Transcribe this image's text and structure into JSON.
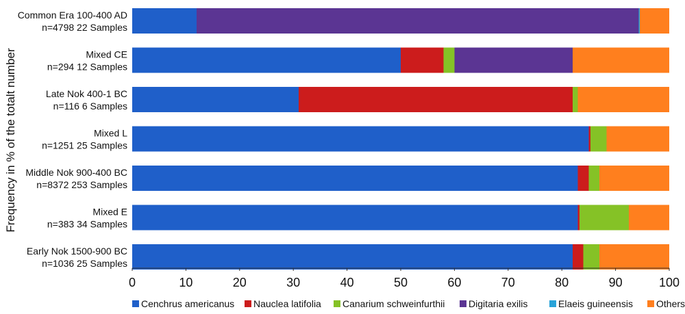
{
  "chart_data": {
    "type": "bar",
    "orientation": "horizontal",
    "stacked": true,
    "ylabel": "Frequency in % of the totalt number",
    "xlim": [
      0,
      100
    ],
    "xticks": [
      0,
      10,
      20,
      30,
      40,
      50,
      60,
      70,
      80,
      90,
      100
    ],
    "grid": false,
    "legend_position": "bottom",
    "categories": [
      {
        "line1": "Common Era 100-400 AD",
        "line2": "n=4798  22 Samples"
      },
      {
        "line1": "Mixed CE",
        "line2": "n=294  12 Samples"
      },
      {
        "line1": "Late Nok 400-1 BC",
        "line2": "n=116  6 Samples"
      },
      {
        "line1": "Mixed L",
        "line2": "n=1251  25 Samples"
      },
      {
        "line1": "Middle Nok 900-400 BC",
        "line2": "n=8372  253 Samples"
      },
      {
        "line1": "Mixed E",
        "line2": "n=383  34 Samples"
      },
      {
        "line1": "Early Nok 1500-900 BC",
        "line2": "n=1036  25 Samples"
      }
    ],
    "series": [
      {
        "name": "Cenchrus americanus",
        "color": "#1f5fc9",
        "values": [
          12.0,
          50.0,
          31.0,
          85.0,
          83.0,
          83.0,
          82.0
        ]
      },
      {
        "name": "Nauclea latifolia",
        "color": "#cc1c1c",
        "values": [
          0.0,
          8.0,
          51.0,
          0.3,
          2.0,
          0.3,
          2.0
        ]
      },
      {
        "name": "Canarium schweinfurthii",
        "color": "#85c226",
        "values": [
          0.0,
          2.0,
          1.0,
          3.0,
          2.0,
          9.2,
          3.0
        ]
      },
      {
        "name": "Digitaria exilis",
        "color": "#5b3593",
        "values": [
          82.3,
          22.0,
          0.0,
          0.0,
          0.0,
          0.0,
          0.0
        ]
      },
      {
        "name": "Elaeis guineensis",
        "color": "#28a3d8",
        "values": [
          0.2,
          0.0,
          0.0,
          0.0,
          0.0,
          0.0,
          0.0
        ]
      },
      {
        "name": "Others",
        "color": "#ff7f1e",
        "values": [
          5.5,
          18.0,
          17.0,
          11.7,
          13.0,
          7.5,
          13.0
        ]
      }
    ]
  }
}
